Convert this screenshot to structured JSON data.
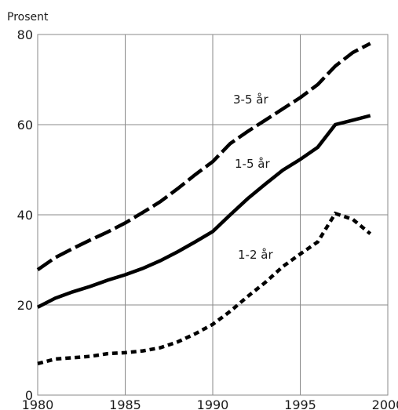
{
  "chart_data": {
    "type": "line",
    "title": "",
    "ylabel": "Prosent",
    "xlabel": "",
    "xlim": [
      1980,
      2000
    ],
    "ylim": [
      0,
      80
    ],
    "x_ticks": [
      1980,
      1985,
      1990,
      1995,
      2000
    ],
    "y_ticks": [
      0,
      20,
      40,
      60,
      80
    ],
    "grid": true,
    "legend": "none",
    "x": [
      1980,
      1981,
      1982,
      1983,
      1984,
      1985,
      1986,
      1987,
      1988,
      1989,
      1990,
      1991,
      1992,
      1993,
      1994,
      1995,
      1996,
      1997,
      1998,
      1999
    ],
    "series": [
      {
        "name": "3-5 år",
        "style": "long-dash",
        "values": [
          27.8,
          30.5,
          32.5,
          34.4,
          36.2,
          38.2,
          40.5,
          42.9,
          45.8,
          48.9,
          51.8,
          55.8,
          58.5,
          61.0,
          63.5,
          66.0,
          68.9,
          73.0,
          76.0,
          78.0
        ]
      },
      {
        "name": "1-5 år",
        "style": "solid",
        "values": [
          19.5,
          21.5,
          22.9,
          24.1,
          25.5,
          26.7,
          28.1,
          29.8,
          31.8,
          34.0,
          36.3,
          40.0,
          43.6,
          46.8,
          49.9,
          52.3,
          55.0,
          60.0,
          61.0,
          62.0
        ]
      },
      {
        "name": "1-2 år",
        "style": "short-dash",
        "values": [
          7.0,
          8.0,
          8.3,
          8.6,
          9.2,
          9.4,
          9.8,
          10.5,
          11.8,
          13.6,
          15.7,
          18.6,
          21.9,
          25.0,
          28.5,
          31.3,
          34.0,
          40.3,
          39.0,
          35.8
        ]
      }
    ],
    "annotations": [
      {
        "text": "3-5 år",
        "series": "3-5 år"
      },
      {
        "text": "1-5 år",
        "series": "1-5 år"
      },
      {
        "text": "1-2 år",
        "series": "1-2 år"
      }
    ]
  }
}
